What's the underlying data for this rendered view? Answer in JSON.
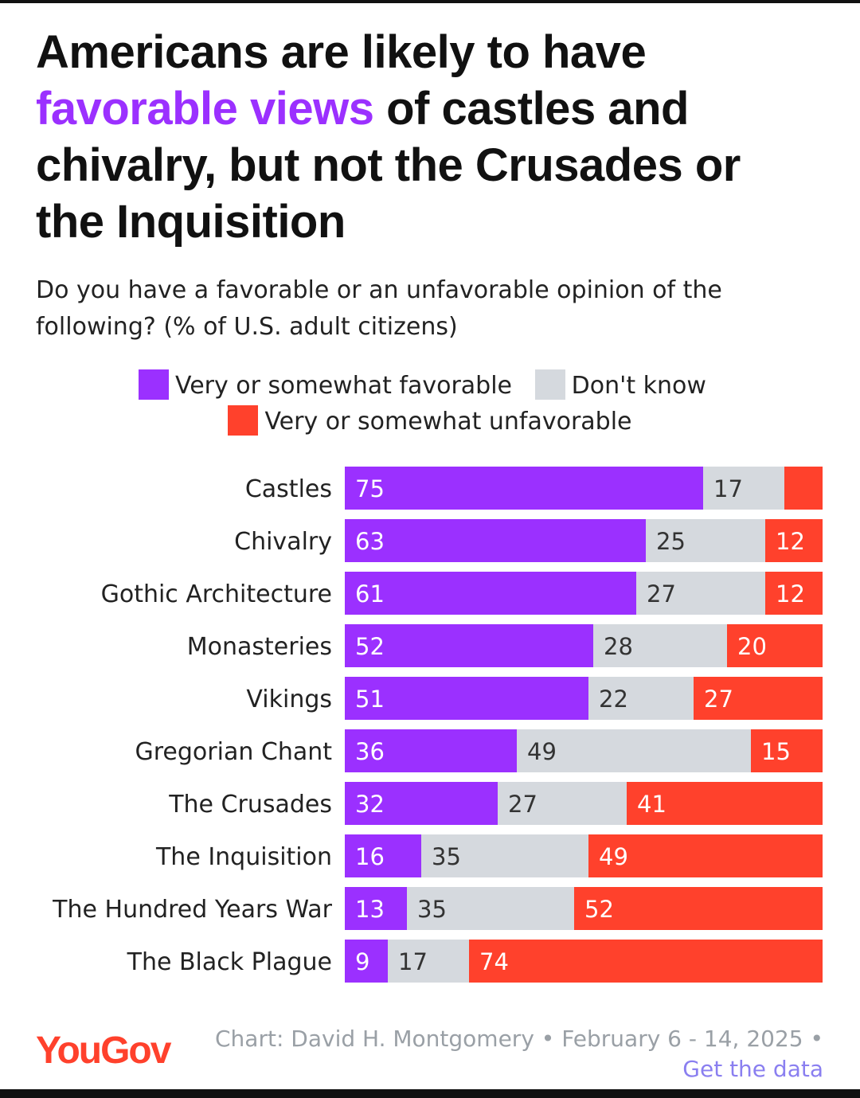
{
  "title": {
    "line1": "Americans are likely to have",
    "highlight": "favorable views",
    "line2_rest": "of castles and",
    "line3": "chivalry, but not the Crusades or",
    "line4": "the Inquisition"
  },
  "subtitle": "Do you have a favorable or an unfavorable opinion of the following? (% of U.S. adult citizens)",
  "footer": {
    "logo": "YouGov",
    "credit": "Chart: David H. Montgomery • February 6 - 14, 2025 •",
    "link": "Get the data"
  },
  "colors": {
    "favorable": "#9b30ff",
    "dont_know": "#d5d9de",
    "unfavorable": "#ff412c",
    "accent_text": "#9b30ff"
  },
  "chart_data": {
    "type": "bar",
    "orientation": "horizontal",
    "stacked": true,
    "categories": [
      "Castles",
      "Chivalry",
      "Gothic Architecture",
      "Monasteries",
      "Vikings",
      "Gregorian Chant",
      "The Crusades",
      "The Inquisition",
      "The Hundred Years War",
      "The Black Plague"
    ],
    "series": [
      {
        "name": "Very or somewhat favorable",
        "values": [
          75,
          63,
          61,
          52,
          51,
          36,
          32,
          16,
          13,
          9
        ]
      },
      {
        "name": "Don't know",
        "values": [
          17,
          25,
          27,
          28,
          22,
          49,
          27,
          35,
          35,
          17
        ]
      },
      {
        "name": "Very or somewhat unfavorable",
        "values": [
          8,
          12,
          12,
          20,
          27,
          15,
          41,
          49,
          52,
          74
        ]
      }
    ],
    "shown_labels": [
      [
        "75",
        "17",
        ""
      ],
      [
        "63",
        "25",
        "12"
      ],
      [
        "61",
        "27",
        "12"
      ],
      [
        "52",
        "28",
        "20"
      ],
      [
        "51",
        "22",
        "27"
      ],
      [
        "36",
        "49",
        "15"
      ],
      [
        "32",
        "27",
        "41"
      ],
      [
        "16",
        "35",
        "49"
      ],
      [
        "13",
        "35",
        "52"
      ],
      [
        "9",
        "17",
        "74"
      ]
    ],
    "xlim": [
      0,
      100
    ],
    "legend_position": "top"
  }
}
